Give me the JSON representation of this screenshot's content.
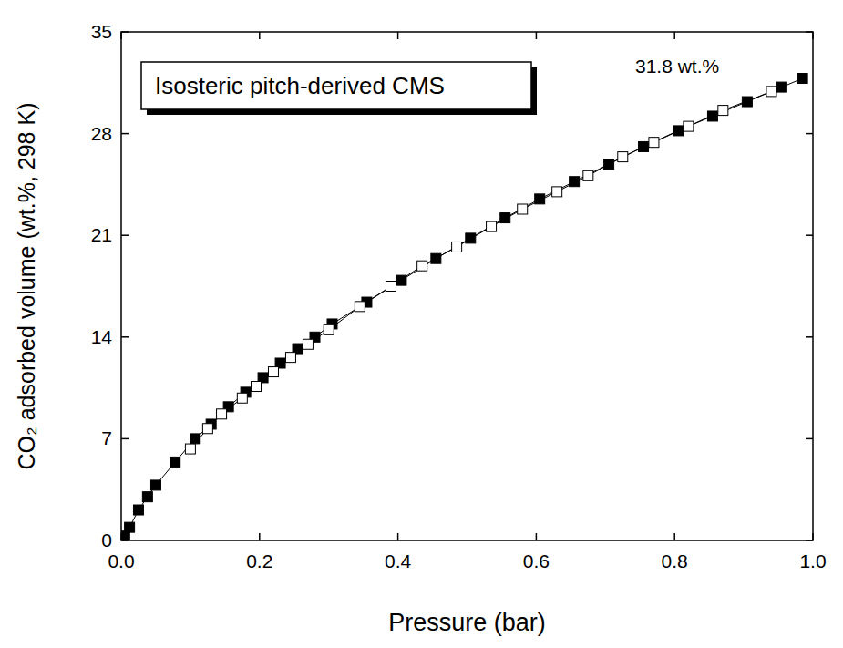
{
  "chart_data": {
    "type": "line",
    "title": "Isosteric pitch-derived CMS",
    "annotations": [
      "31.8 wt.%"
    ],
    "x_label": "Pressure (bar)",
    "y_label": "CO₂ adsorbed volume (wt.%, 298 K)",
    "xlim": [
      0,
      1
    ],
    "ylim": [
      0,
      35
    ],
    "xticks": [
      {
        "value": 0,
        "label": "0.0"
      },
      0.2,
      0.4,
      0.6,
      0.8,
      {
        "value": 1,
        "label": "1.0"
      }
    ],
    "yticks": [
      0,
      7,
      14,
      21,
      28,
      35
    ],
    "grid": false,
    "series": [
      {
        "color": "#000000",
        "marker": "filled-square",
        "line_style": "solid",
        "x": [
          0.005,
          0.012,
          0.025,
          0.038,
          0.05,
          0.078,
          0.107,
          0.13,
          0.155,
          0.18,
          0.205,
          0.23,
          0.255,
          0.28,
          0.305,
          0.355,
          0.405,
          0.455,
          0.505,
          0.555,
          0.605,
          0.655,
          0.705,
          0.755,
          0.805,
          0.855,
          0.905,
          0.955,
          0.985
        ],
        "values": [
          0.3,
          0.9,
          2.1,
          3.0,
          3.8,
          5.4,
          7.0,
          8.0,
          9.2,
          10.2,
          11.2,
          12.2,
          13.2,
          14.0,
          14.9,
          16.4,
          17.9,
          19.4,
          20.8,
          22.2,
          23.5,
          24.7,
          25.9,
          27.1,
          28.2,
          29.2,
          30.2,
          31.2,
          31.8
        ]
      },
      {
        "color": "#000000",
        "marker": "open-square",
        "line_style": "solid",
        "x": [
          0.94,
          0.87,
          0.82,
          0.77,
          0.725,
          0.675,
          0.63,
          0.58,
          0.535,
          0.485,
          0.435,
          0.39,
          0.345,
          0.3,
          0.27,
          0.245,
          0.22,
          0.195,
          0.175,
          0.145,
          0.125,
          0.1
        ],
        "values": [
          30.9,
          29.6,
          28.5,
          27.4,
          26.4,
          25.1,
          24.0,
          22.8,
          21.6,
          20.2,
          18.9,
          17.5,
          16.1,
          14.5,
          13.5,
          12.6,
          11.6,
          10.6,
          9.8,
          8.7,
          7.7,
          6.3
        ]
      }
    ]
  }
}
